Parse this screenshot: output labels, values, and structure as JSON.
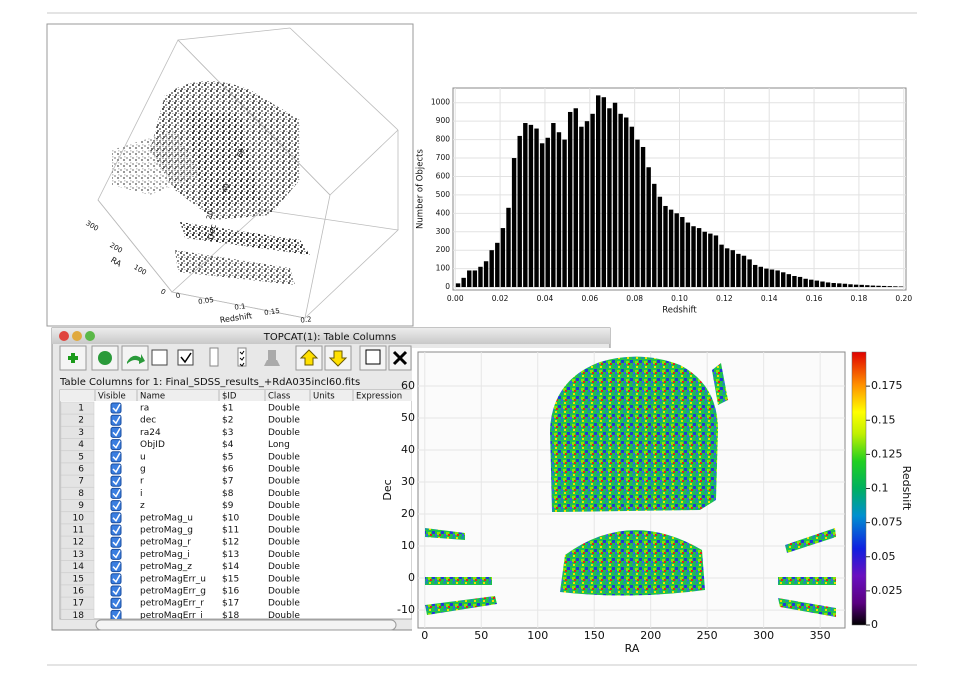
{
  "chart_data": [
    {
      "type": "scatter3d",
      "axes": {
        "x": {
          "label": "RA",
          "ticks": [
            300,
            200,
            100,
            0
          ]
        },
        "y": {
          "label": "Redshift",
          "ticks": [
            0,
            0.05,
            0.1,
            0.15,
            0.2
          ]
        },
        "z": {
          "label": "Dec",
          "ticks": [
            20,
            40,
            60
          ]
        }
      }
    },
    {
      "type": "histogram",
      "xlabel": "Redshift",
      "ylabel": "Number of Objects",
      "color": "#000000",
      "bins": [
        0,
        0.0025,
        0.005,
        0.0075,
        0.01,
        0.0125,
        0.015,
        0.0175,
        0.02,
        0.0225,
        0.025,
        0.0275,
        0.03,
        0.0325,
        0.035,
        0.0375,
        0.04,
        0.0425,
        0.045,
        0.0475,
        0.05,
        0.0525,
        0.055,
        0.0575,
        0.06,
        0.0625,
        0.065,
        0.0675,
        0.07,
        0.0725,
        0.075,
        0.0775,
        0.08,
        0.0825,
        0.085,
        0.0875,
        0.09,
        0.0925,
        0.095,
        0.0975,
        0.1,
        0.1025,
        0.105,
        0.1075,
        0.11,
        0.1125,
        0.115,
        0.1175,
        0.12,
        0.1225,
        0.125,
        0.1275,
        0.13,
        0.1325,
        0.135,
        0.1375,
        0.14,
        0.1425,
        0.145,
        0.1475,
        0.15,
        0.1525,
        0.155,
        0.1575,
        0.16,
        0.1625,
        0.165,
        0.1675,
        0.17,
        0.1725,
        0.175,
        0.1775,
        0.18,
        0.1825,
        0.185,
        0.1875,
        0.19,
        0.1925,
        0.195,
        0.1975,
        0.2
      ],
      "values": [
        20,
        50,
        90,
        90,
        110,
        140,
        200,
        240,
        320,
        430,
        700,
        820,
        890,
        880,
        860,
        780,
        810,
        890,
        840,
        800,
        950,
        970,
        870,
        900,
        940,
        1040,
        1030,
        970,
        1000,
        940,
        920,
        870,
        800,
        760,
        650,
        560,
        490,
        440,
        420,
        400,
        380,
        350,
        330,
        320,
        300,
        290,
        280,
        230,
        210,
        200,
        180,
        170,
        150,
        120,
        110,
        100,
        95,
        90,
        80,
        70,
        60,
        55,
        45,
        40,
        35,
        30,
        25,
        22,
        20,
        18,
        15,
        13,
        12,
        10,
        8,
        7,
        6,
        5,
        4,
        3
      ],
      "xlim": [
        -0.001,
        0.201
      ],
      "ylim": [
        -16,
        1080
      ],
      "xticks": [
        {
          "value": 0,
          "label": "0.00"
        },
        0.02,
        0.04,
        0.06,
        0.08,
        {
          "value": 0.1,
          "label": "0.10"
        },
        0.12,
        0.14,
        0.16,
        0.18,
        {
          "value": 0.2,
          "label": "0.20"
        }
      ],
      "yticks": [
        0,
        100,
        200,
        300,
        400,
        500,
        600,
        700,
        800,
        900,
        1000
      ],
      "grid": true
    },
    {
      "type": "scatter",
      "xlabel": "RA",
      "ylabel": "Dec",
      "xlim": [
        -6,
        372
      ],
      "ylim": [
        -15.6,
        70.6
      ],
      "xticks": [
        0,
        50,
        100,
        150,
        200,
        250,
        300,
        350
      ],
      "yticks": [
        -10,
        0,
        10,
        20,
        30,
        40,
        50,
        60
      ],
      "grid": true,
      "colorbar": {
        "label": "Redshift",
        "lim": [
          0,
          0.2
        ],
        "ticks": [
          0,
          0.025,
          0.05,
          0.075,
          0.1,
          0.125,
          0.15,
          0.175
        ]
      }
    }
  ],
  "topcat": {
    "title": "TOPCAT(1): Table Columns",
    "caption": "Table Columns for 1: Final_SDSS_results_+RdA035incl60.fits",
    "columns": [
      "Visible",
      "Name",
      "$ID",
      "Class",
      "Units",
      "Expression"
    ],
    "rows": [
      [
        1,
        "ra",
        "$1",
        "Double"
      ],
      [
        2,
        "dec",
        "$2",
        "Double"
      ],
      [
        3,
        "ra24",
        "$3",
        "Double"
      ],
      [
        4,
        "ObjID",
        "$4",
        "Long"
      ],
      [
        5,
        "u",
        "$5",
        "Double"
      ],
      [
        6,
        "g",
        "$6",
        "Double"
      ],
      [
        7,
        "r",
        "$7",
        "Double"
      ],
      [
        8,
        "i",
        "$8",
        "Double"
      ],
      [
        9,
        "z",
        "$9",
        "Double"
      ],
      [
        10,
        "petroMag_u",
        "$10",
        "Double"
      ],
      [
        11,
        "petroMag_g",
        "$11",
        "Double"
      ],
      [
        12,
        "petroMag_r",
        "$12",
        "Double"
      ],
      [
        13,
        "petroMag_i",
        "$13",
        "Double"
      ],
      [
        14,
        "petroMag_z",
        "$14",
        "Double"
      ],
      [
        15,
        "petroMagErr_u",
        "$15",
        "Double"
      ],
      [
        16,
        "petroMagErr_g",
        "$16",
        "Double"
      ],
      [
        17,
        "petroMagErr_r",
        "$17",
        "Double"
      ],
      [
        18,
        "petroMagErr_i",
        "$18",
        "Double"
      ]
    ]
  }
}
